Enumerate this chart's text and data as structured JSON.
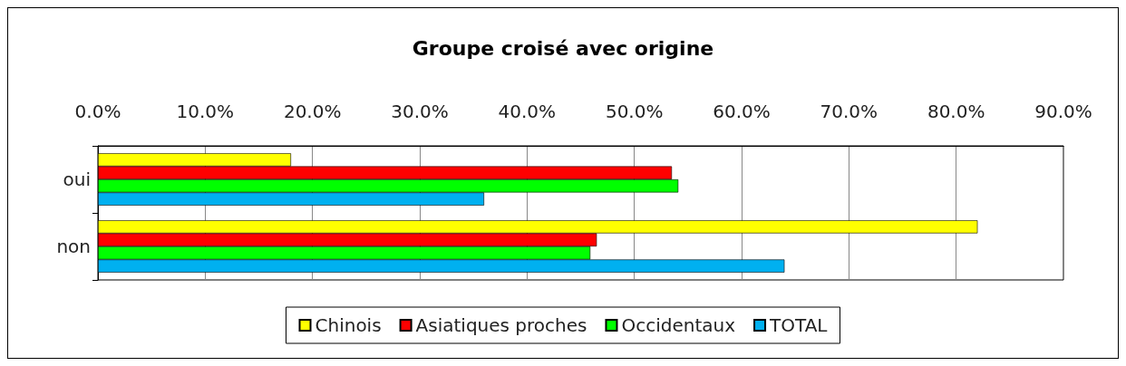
{
  "chart_data": {
    "type": "bar",
    "orientation": "horizontal",
    "title": "Groupe croisé avec origine",
    "categories": [
      "oui",
      "non"
    ],
    "series": [
      {
        "name": "Chinois",
        "color": "#ffff00",
        "values": [
          18.0,
          82.0
        ]
      },
      {
        "name": "Asiatiques proches",
        "color": "#ff0000",
        "values": [
          53.5,
          46.5
        ]
      },
      {
        "name": "Occidentaux",
        "color": "#00ff00",
        "values": [
          54.1,
          45.9
        ]
      },
      {
        "name": "TOTAL",
        "color": "#00b0f0",
        "values": [
          36.0,
          64.0
        ]
      }
    ],
    "xlim": [
      0,
      90
    ],
    "xticks": [
      {
        "value": 0,
        "label": "0.0%"
      },
      {
        "value": 10,
        "label": "10.0%"
      },
      {
        "value": 20,
        "label": "20.0%"
      },
      {
        "value": 30,
        "label": "30.0%"
      },
      {
        "value": 40,
        "label": "40.0%"
      },
      {
        "value": 50,
        "label": "50.0%"
      },
      {
        "value": 60,
        "label": "60.0%"
      },
      {
        "value": 70,
        "label": "70.0%"
      },
      {
        "value": 80,
        "label": "80.0%"
      },
      {
        "value": 90,
        "label": "90.0%"
      }
    ],
    "grid": "x",
    "legend": "bottom"
  }
}
